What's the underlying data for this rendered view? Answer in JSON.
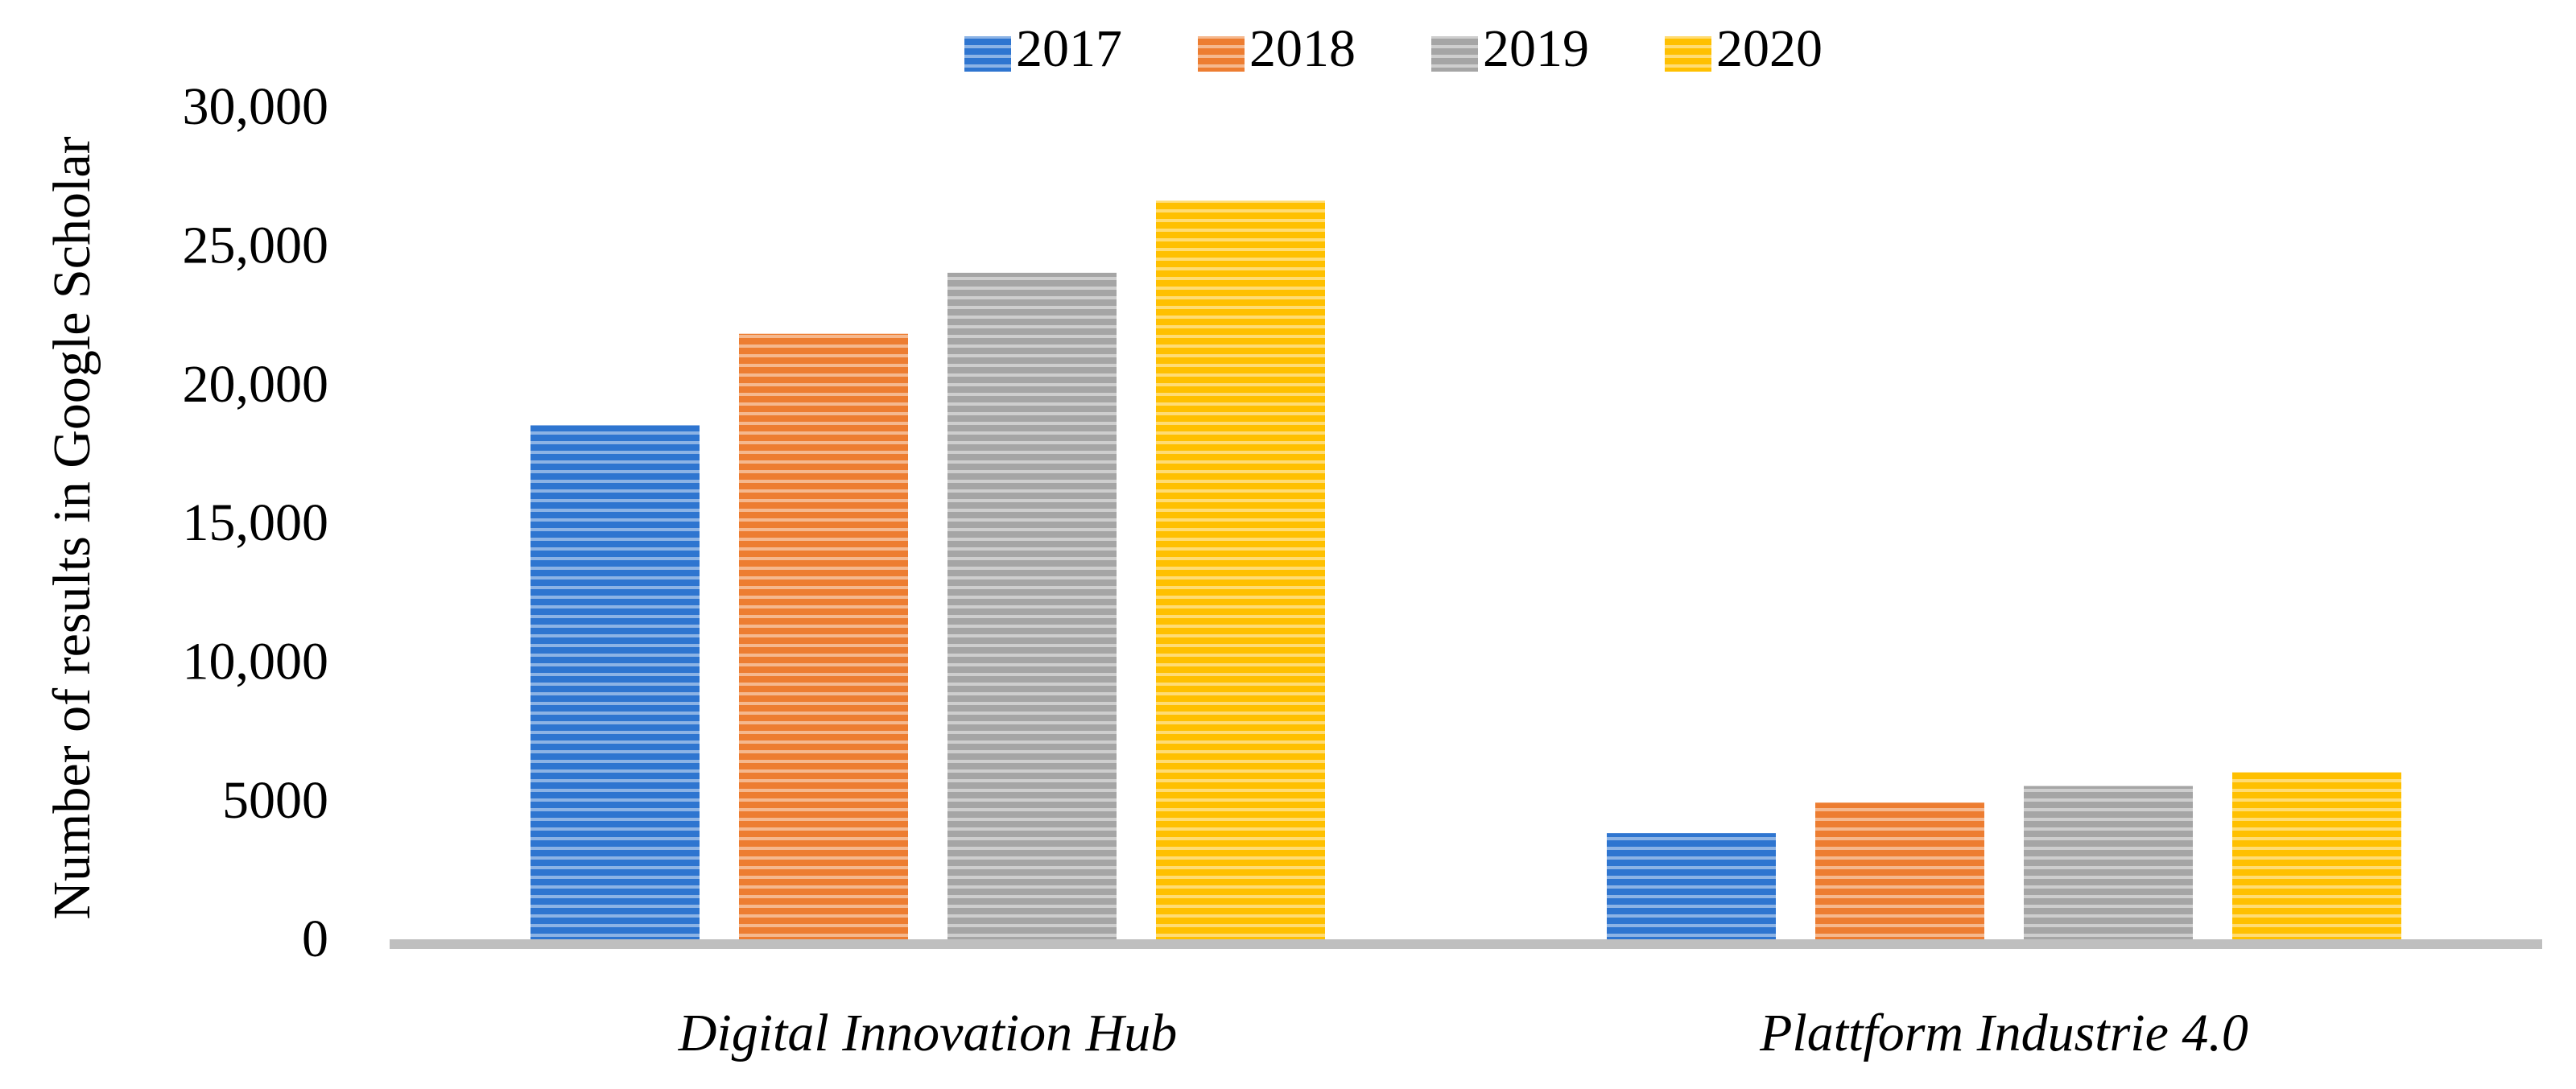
{
  "chart_data": {
    "type": "bar",
    "y_label": "Number of results in Google Scholar",
    "categories": [
      "Digital Innovation Hub",
      "Plattform Industrie 4.0"
    ],
    "series": [
      {
        "name": "2017",
        "color": "#2e75d0",
        "values": [
          18700,
          4000
        ]
      },
      {
        "name": "2018",
        "color": "#ed7d31",
        "values": [
          22000,
          5100
        ]
      },
      {
        "name": "2019",
        "color": "#a5a5a5",
        "values": [
          24200,
          5700
        ]
      },
      {
        "name": "2020",
        "color": "#ffc000",
        "values": [
          26800,
          6200
        ]
      }
    ],
    "ylim": [
      0,
      30000
    ],
    "yticks": [
      0,
      5000,
      {
        "value": 10000,
        "label": "10,000"
      },
      {
        "value": 15000,
        "label": "15,000"
      },
      {
        "value": 20000,
        "label": "20,000"
      },
      {
        "value": 25000,
        "label": "25,000"
      },
      {
        "value": 30000,
        "label": "30,000"
      }
    ],
    "grid": false,
    "legend": "top"
  }
}
